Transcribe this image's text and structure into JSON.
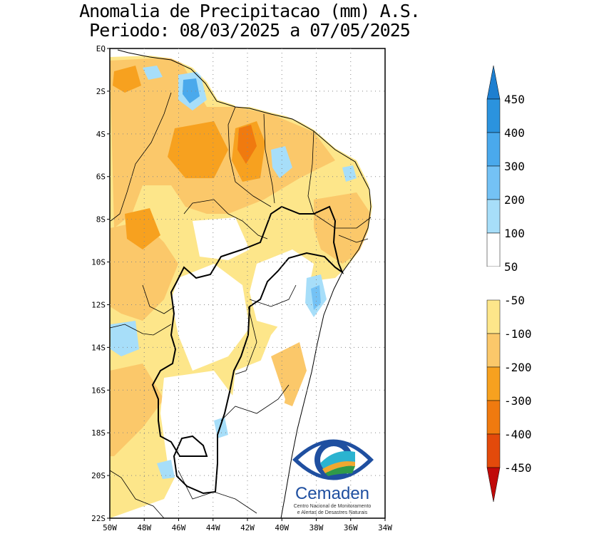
{
  "title_line1": "Anomalia de Precipitacao (mm) A.S.",
  "title_line2": "Periodo: 08/03/2025 a 07/05/2025",
  "map": {
    "lon_range": [
      -50,
      -34
    ],
    "lat_range": [
      -22,
      0
    ],
    "lat_labels": [
      "EQ",
      "2S",
      "4S",
      "6S",
      "8S",
      "10S",
      "12S",
      "14S",
      "16S",
      "18S",
      "20S",
      "22S"
    ],
    "lon_labels": [
      "50W",
      "48W",
      "46W",
      "44W",
      "42W",
      "40W",
      "38W",
      "36W",
      "34W"
    ],
    "gridlines": "dotted"
  },
  "colorbar": {
    "labels": [
      "450",
      "400",
      "300",
      "200",
      "100",
      "50",
      "-50",
      "-100",
      "-200",
      "-300",
      "-400",
      "-450"
    ],
    "colors": {
      "pos_450": "#1e7fd0",
      "pos_400": "#2b93de",
      "pos_300": "#4aa9ec",
      "pos_200": "#74c2f5",
      "pos_100": "#a7def9",
      "neutral": "#ffffff",
      "neg_50": "#fde68a",
      "neg_100": "#fbc86a",
      "neg_200": "#f7a11f",
      "neg_300": "#f07a0f",
      "neg_400": "#e34a0b",
      "neg_450": "#c00a0a"
    }
  },
  "logo": {
    "name": "Cemaden",
    "line1": "Centro Nacional de Monitoramento",
    "line2": "e Alertas de Desastres Naturais"
  }
}
